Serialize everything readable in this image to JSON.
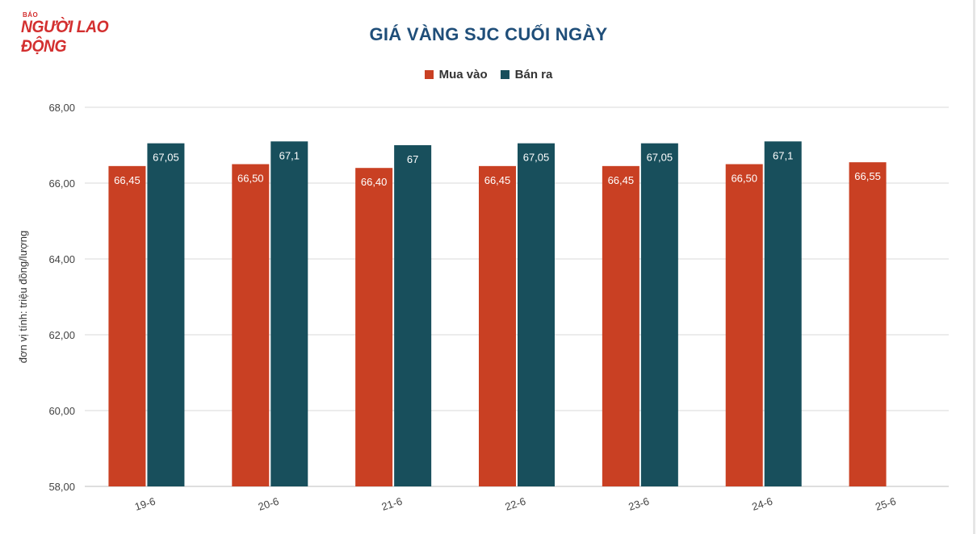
{
  "logo": {
    "small": "BÁO",
    "main": "NGƯỜI LAO ĐỘNG"
  },
  "chart_data": {
    "type": "bar",
    "title": "GIÁ VÀNG SJC CUỐI NGÀY",
    "ylabel": "đơn vị tính: triệu đồng/lượng",
    "xlabel": "",
    "ylim": [
      58,
      68
    ],
    "yticks": [
      58,
      60,
      62,
      64,
      66,
      68
    ],
    "ytick_labels": [
      "58,00",
      "60,00",
      "62,00",
      "64,00",
      "66,00",
      "68,00"
    ],
    "grid": true,
    "legend_position": "top",
    "categories": [
      "19-6",
      "20-6",
      "21-6",
      "22-6",
      "23-6",
      "24-6",
      "25-6"
    ],
    "series": [
      {
        "name": "Mua vào",
        "color": "#c94023",
        "values": [
          66.45,
          66.5,
          66.4,
          66.45,
          66.45,
          66.5,
          66.55
        ],
        "labels": [
          "66,45",
          "66,50",
          "66,40",
          "66,45",
          "66,45",
          "66,50",
          "66,55"
        ]
      },
      {
        "name": "Bán ra",
        "color": "#184f5c",
        "values": [
          67.05,
          67.1,
          67,
          67.05,
          67.05,
          67.1,
          null
        ],
        "labels": [
          "67,05",
          "67,1",
          "67",
          "67,05",
          "67,05",
          "67,1",
          null
        ]
      }
    ]
  }
}
